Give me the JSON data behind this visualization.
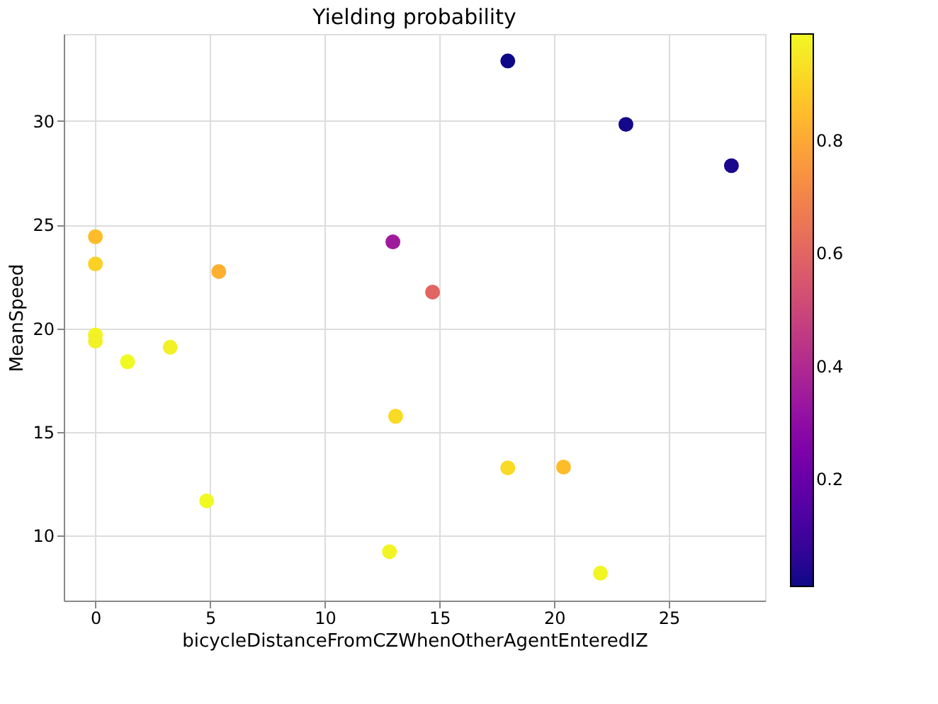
{
  "chart_data": {
    "type": "scatter",
    "title": "Yielding probability",
    "xlabel": "bicycleDistanceFromCZWhenOtherAgentEnteredIZ",
    "ylabel": "MeanSpeed",
    "x": [
      17.98,
      23.13,
      27.73,
      0,
      0,
      5.38,
      12.97,
      14.7,
      0,
      0,
      1.4,
      3.26,
      13.09,
      17.98,
      20.41,
      4.85,
      12.82,
      22.02
    ],
    "values": [
      32.9,
      29.84,
      27.85,
      24.42,
      23.11,
      22.74,
      24.17,
      21.75,
      19.68,
      19.39,
      18.39,
      19.09,
      15.76,
      13.27,
      13.31,
      11.68,
      9.23,
      8.19
    ],
    "cvalues": [
      0.01,
      0.02,
      0.03,
      0.85,
      0.9,
      0.82,
      0.35,
      0.6,
      0.98,
      0.97,
      0.99,
      0.97,
      0.92,
      0.92,
      0.85,
      0.99,
      0.98,
      0.98
    ],
    "xlim": [
      -1.38,
      29.2
    ],
    "ylim": [
      6.87,
      34.2
    ],
    "xticks": [
      0,
      5,
      10,
      15,
      20,
      25
    ],
    "yticks": [
      10,
      15,
      20,
      25,
      30
    ],
    "clim": [
      0.01,
      0.99
    ],
    "cticks": [
      0.2,
      0.4,
      0.6,
      0.8
    ],
    "grid": true,
    "marker": "circle"
  }
}
